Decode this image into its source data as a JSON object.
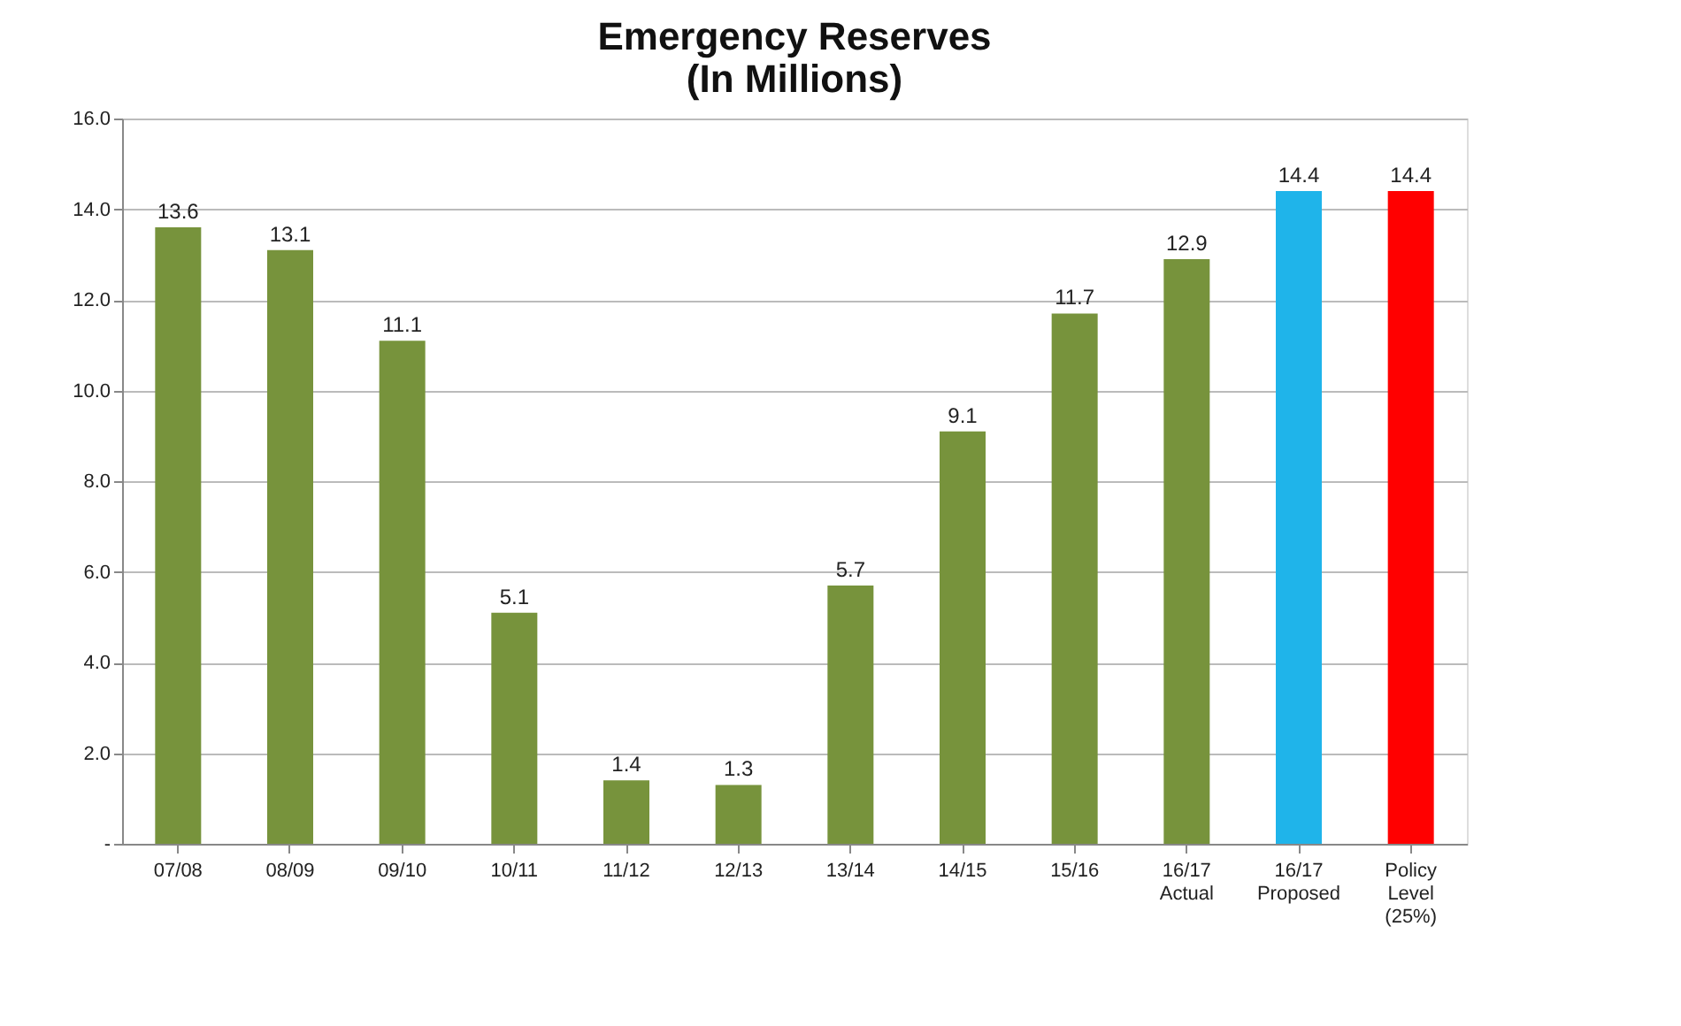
{
  "chart_data": {
    "type": "bar",
    "title": "Emergency Reserves\n(In Millions)",
    "categories": [
      "07/08",
      "08/09",
      "09/10",
      "10/11",
      "11/12",
      "12/13",
      "13/14",
      "14/15",
      "15/16",
      "16/17\nActual",
      "16/17\nProposed",
      "Policy\nLevel\n(25%)"
    ],
    "values": [
      13.6,
      13.1,
      11.1,
      5.1,
      1.4,
      1.3,
      5.7,
      9.1,
      11.7,
      12.9,
      14.4,
      14.4
    ],
    "colors": [
      "#77933c",
      "#77933c",
      "#77933c",
      "#77933c",
      "#77933c",
      "#77933c",
      "#77933c",
      "#77933c",
      "#77933c",
      "#77933c",
      "#1fb4ea",
      "#ff0000"
    ],
    "ylim": [
      0,
      16
    ],
    "yticks": [
      {
        "value": 0,
        "label": "-"
      },
      {
        "value": 2,
        "label": "2.0"
      },
      {
        "value": 4,
        "label": "4.0"
      },
      {
        "value": 6,
        "label": "6.0"
      },
      {
        "value": 8,
        "label": "8.0"
      },
      {
        "value": 10,
        "label": "10.0"
      },
      {
        "value": 12,
        "label": "12.0"
      },
      {
        "value": 14,
        "label": "14.0"
      },
      {
        "value": 16,
        "label": "16.0"
      }
    ],
    "grid": "y",
    "data_labels": true
  }
}
